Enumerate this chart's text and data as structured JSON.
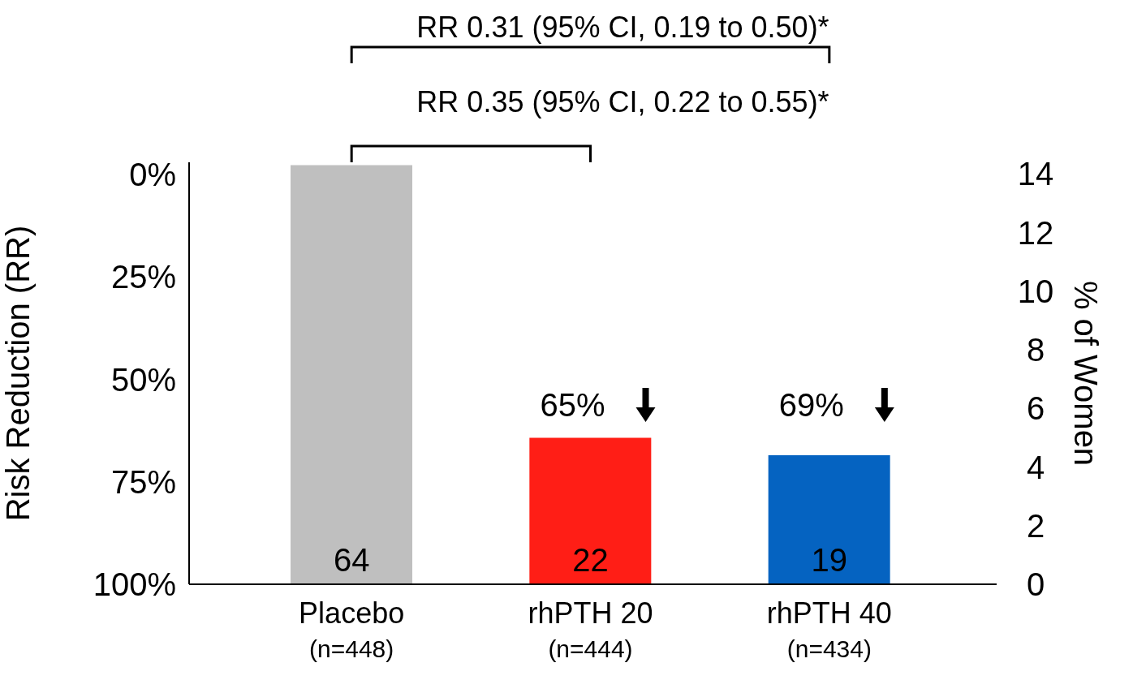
{
  "chart_data": {
    "type": "bar",
    "categories": [
      "Placebo\n(n=448)",
      "rhPTH 20\n(n=444)",
      "rhPTH 40\n(n=434)"
    ],
    "series": [
      {
        "axis": "y2",
        "values": [
          14.3,
          5.0,
          4.4
        ],
        "colors": [
          "#bfbfbf",
          "#ff1e16",
          "#0563c1"
        ]
      }
    ],
    "ylabel": "Risk Reduction (RR)",
    "y2label": "% of Women",
    "ylim": [
      100,
      -3
    ],
    "yticks": [
      {
        "value": 0,
        "label": "0%"
      },
      {
        "value": 25,
        "label": "25%"
      },
      {
        "value": 50,
        "label": "50%"
      },
      {
        "value": 75,
        "label": "75%"
      },
      {
        "value": 100,
        "label": "100%"
      }
    ],
    "y2lim": [
      0,
      14.4
    ],
    "y2ticks": [
      0,
      2,
      4,
      6,
      8,
      10,
      12,
      14
    ],
    "annotations": [
      "RR 0.35 (95% CI, 0.22 to 0.55)*",
      "RR 0.31 (95% CI, 0.19 to 0.50)*",
      "65%",
      "69%",
      "64",
      "22",
      "19"
    ],
    "grid": false,
    "legend": false
  }
}
